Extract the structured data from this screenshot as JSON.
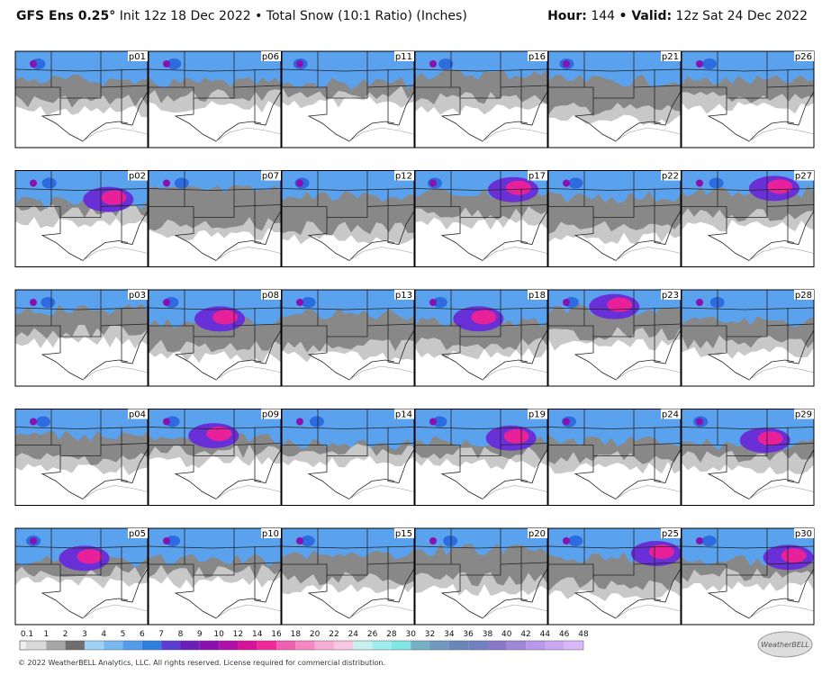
{
  "header": {
    "model": "GFS Ens 0.25°",
    "init": "Init 12z 18 Dec 2022",
    "product": "• Total Snow (10:1 Ratio) (Inches)",
    "hour_label": "Hour:",
    "hour": "144",
    "valid_label": "• Valid:",
    "valid": "12z Sat 24 Dec 2022"
  },
  "panels": [
    {
      "label": "p01"
    },
    {
      "label": "p06"
    },
    {
      "label": "p11"
    },
    {
      "label": "p16"
    },
    {
      "label": "p21"
    },
    {
      "label": "p26"
    },
    {
      "label": "p02"
    },
    {
      "label": "p07"
    },
    {
      "label": "p12"
    },
    {
      "label": "p17"
    },
    {
      "label": "p22"
    },
    {
      "label": "p27"
    },
    {
      "label": "p03"
    },
    {
      "label": "p08"
    },
    {
      "label": "p13"
    },
    {
      "label": "p18"
    },
    {
      "label": "p23"
    },
    {
      "label": "p28"
    },
    {
      "label": "p04"
    },
    {
      "label": "p09"
    },
    {
      "label": "p14"
    },
    {
      "label": "p19"
    },
    {
      "label": "p24"
    },
    {
      "label": "p29"
    },
    {
      "label": "p05"
    },
    {
      "label": "p10"
    },
    {
      "label": "p15"
    },
    {
      "label": "p20"
    },
    {
      "label": "p25"
    },
    {
      "label": "p30"
    }
  ],
  "colorbar": {
    "labels": [
      "0.1",
      "1",
      "2",
      "3",
      "4",
      "5",
      "6",
      "7",
      "8",
      "9",
      "10",
      "12",
      "14",
      "16",
      "18",
      "20",
      "22",
      "24",
      "26",
      "28",
      "30",
      "32",
      "34",
      "36",
      "38",
      "40",
      "42",
      "44",
      "46",
      "48"
    ],
    "colors": [
      "#d9d9d9",
      "#a6a6a6",
      "#6e6e6e",
      "#9fd0f5",
      "#78b8f0",
      "#529ceb",
      "#2e7fe0",
      "#5a3fd0",
      "#6a1fb8",
      "#8a10b0",
      "#b010a8",
      "#d8109a",
      "#f0289a",
      "#f060b0",
      "#f488c4",
      "#f6aed6",
      "#f6c8e2",
      "#c8f0f0",
      "#a0ecec",
      "#80e6e6",
      "#78b0c8",
      "#7098c0",
      "#6888b8",
      "#7080c0",
      "#8878c8",
      "#a088d8",
      "#b898e8",
      "#c8a8f0",
      "#d8b8f8"
    ]
  },
  "footer": "© 2022 WeatherBELL Analytics, LLC. All rights reserved. License required for commercial distribution.",
  "logo": "WeatherBELL"
}
